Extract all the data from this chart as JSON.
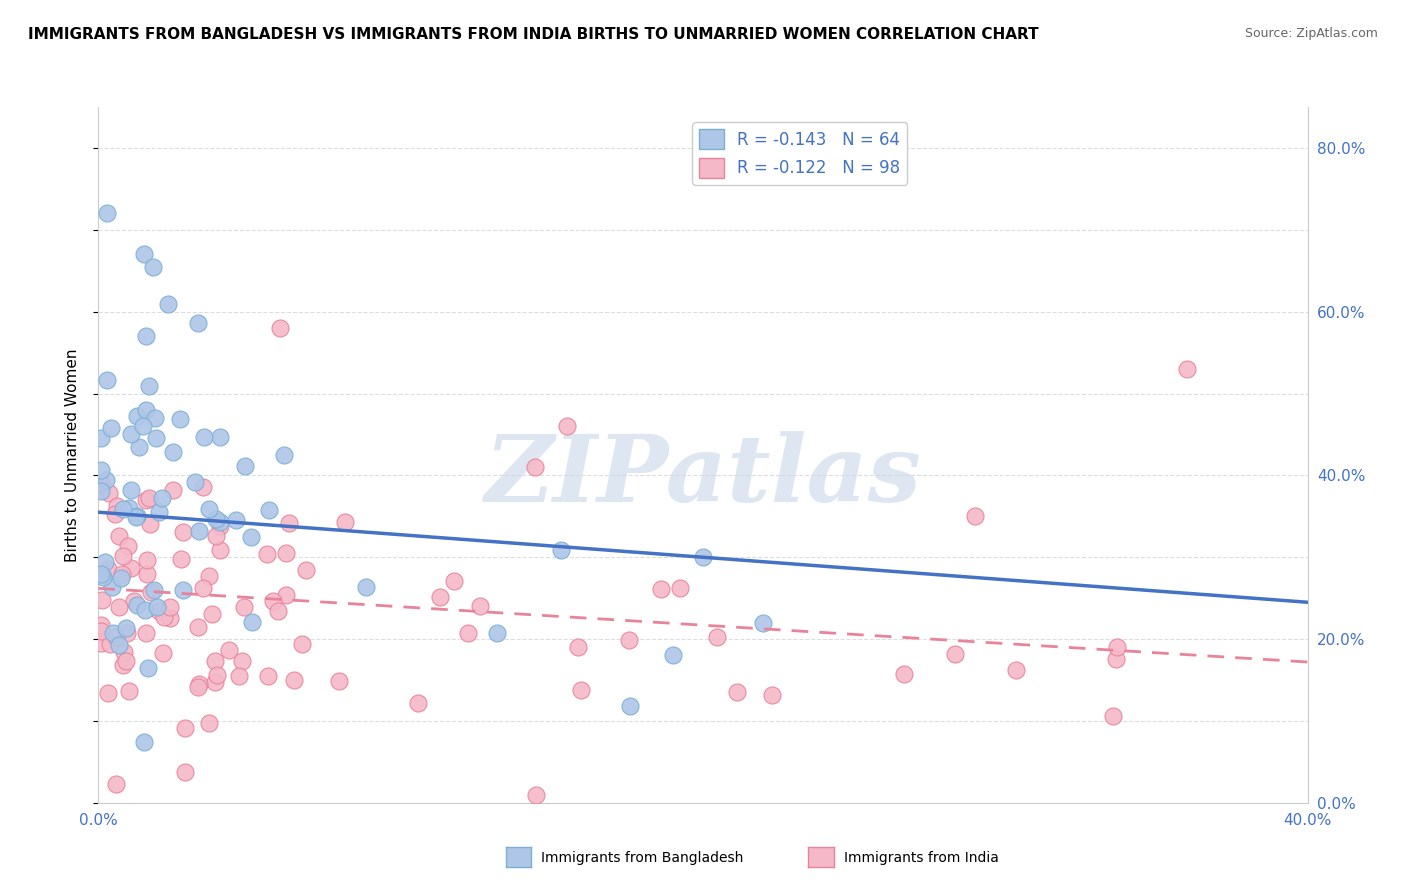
{
  "title": "IMMIGRANTS FROM BANGLADESH VS IMMIGRANTS FROM INDIA BIRTHS TO UNMARRIED WOMEN CORRELATION CHART",
  "source": "Source: ZipAtlas.com",
  "ylabel": "Births to Unmarried Women",
  "legend_entries": [
    {
      "label": "R = -0.143   N = 64",
      "color": "#aec6e8",
      "border": "#7bafd4"
    },
    {
      "label": "R = -0.122   N = 98",
      "color": "#f4b8c8",
      "border": "#e8839b"
    }
  ],
  "series_bangladesh": {
    "color": "#aec6e8",
    "edge_color": "#7bafd4",
    "trend_color": "#4472c4",
    "trend_start_x": 0.0,
    "trend_start_y": 0.355,
    "trend_end_x": 0.4,
    "trend_end_y": 0.245
  },
  "series_india": {
    "color": "#f4b8c8",
    "edge_color": "#e8839b",
    "trend_color": "#e8839b",
    "trend_style": "--",
    "trend_start_x": 0.0,
    "trend_start_y": 0.262,
    "trend_end_x": 0.4,
    "trend_end_y": 0.172
  },
  "xlim": [
    0.0,
    0.4
  ],
  "ylim": [
    0.0,
    0.85
  ],
  "right_yticks": [
    0.0,
    0.2,
    0.4,
    0.6,
    0.8
  ],
  "right_yticklabels": [
    "0.0%",
    "20.0%",
    "40.0%",
    "60.0%",
    "80.0%"
  ],
  "xticks": [
    0.0,
    0.4
  ],
  "xticklabels": [
    "0.0%",
    "40.0%"
  ],
  "background_color": "#ffffff",
  "grid_color": "#dddddd",
  "axis_label_color": "#4472c4",
  "title_fontsize": 11,
  "watermark": "ZIPatlas",
  "watermark_color": "#c8d8e8",
  "legend_label_color": "#4472c4"
}
